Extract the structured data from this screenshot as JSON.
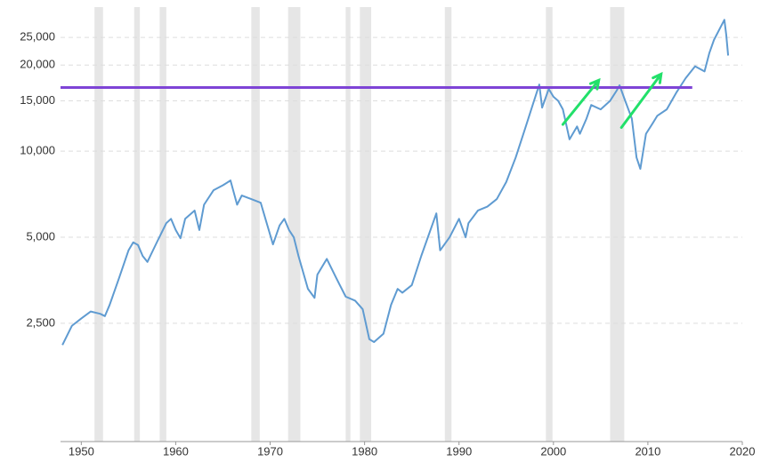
{
  "chart_data": {
    "type": "line",
    "log_scale": true,
    "grid": true,
    "xlim": [
      1947.8,
      2020
    ],
    "xticks": [
      1950,
      1960,
      1970,
      1980,
      1990,
      2000,
      2010,
      2020
    ],
    "ylim": [
      965,
      31900
    ],
    "yticks": [
      {
        "value": 2500,
        "label": "2,500"
      },
      {
        "value": 5000,
        "label": "5,000"
      },
      {
        "value": 10000,
        "label": "10,000"
      },
      {
        "value": 15000,
        "label": "15,000"
      },
      {
        "value": 20000,
        "label": "20,000"
      },
      {
        "value": 25000,
        "label": "25,000"
      }
    ],
    "x": [
      1948.0,
      1949.0,
      1950.0,
      1951.0,
      1952.0,
      1952.5,
      1953.0,
      1954.0,
      1955.0,
      1955.5,
      1956.0,
      1956.5,
      1957.0,
      1958.0,
      1959.0,
      1959.5,
      1960.0,
      1960.5,
      1961.0,
      1962.0,
      1962.5,
      1963.0,
      1964.0,
      1965.0,
      1965.8,
      1966.5,
      1967.0,
      1968.0,
      1969.0,
      1969.5,
      1970.3,
      1971.0,
      1971.5,
      1972.0,
      1972.5,
      1973.0,
      1974.0,
      1974.7,
      1975.0,
      1976.0,
      1977.0,
      1978.0,
      1979.0,
      1979.8,
      1980.5,
      1981.0,
      1982.0,
      1982.8,
      1983.5,
      1984.0,
      1985.0,
      1986.0,
      1987.6,
      1988.0,
      1989.0,
      1990.0,
      1990.7,
      1991.0,
      1992.0,
      1993.0,
      1994.0,
      1995.0,
      1996.0,
      1997.0,
      1997.8,
      1998.5,
      1998.8,
      1999.5,
      2000.0,
      2000.5,
      2001.0,
      2001.7,
      2002.5,
      2002.8,
      2003.5,
      2004.0,
      2005.0,
      2006.0,
      2006.7,
      2007.0,
      2007.6,
      2008.3,
      2008.8,
      2009.2,
      2009.8,
      2010.5,
      2011.0,
      2012.0,
      2013.0,
      2014.0,
      2015.0,
      2016.0,
      2016.5,
      2017.0,
      2018.1,
      2018.3,
      2018.5
    ],
    "series": [
      {
        "color": "#5f9bd1",
        "values": [
          2100,
          2450,
          2600,
          2750,
          2700,
          2650,
          2900,
          3600,
          4500,
          4800,
          4700,
          4300,
          4100,
          4800,
          5600,
          5800,
          5300,
          4960,
          5800,
          6200,
          5300,
          6500,
          7300,
          7600,
          7900,
          6500,
          7000,
          6800,
          6600,
          5800,
          4720,
          5500,
          5800,
          5300,
          5000,
          4300,
          3300,
          3070,
          3700,
          4200,
          3600,
          3100,
          3000,
          2800,
          2200,
          2150,
          2300,
          2900,
          3300,
          3200,
          3400,
          4300,
          6060,
          4500,
          5000,
          5800,
          5000,
          5600,
          6200,
          6400,
          6800,
          7800,
          9500,
          12000,
          14500,
          17100,
          14200,
          16500,
          15500,
          15000,
          14000,
          11000,
          12200,
          11500,
          13000,
          14500,
          14000,
          15000,
          16300,
          17000,
          15000,
          13000,
          9500,
          8670,
          11500,
          12500,
          13300,
          14000,
          16000,
          18000,
          19800,
          19000,
          22000,
          24500,
          28800,
          25500,
          21600
        ]
      }
    ],
    "shaded_periods": [
      {
        "start": 1951.4,
        "end": 1952.3
      },
      {
        "start": 1955.6,
        "end": 1956.2
      },
      {
        "start": 1958.3,
        "end": 1959.0
      },
      {
        "start": 1968.0,
        "end": 1968.9
      },
      {
        "start": 1971.9,
        "end": 1973.2
      },
      {
        "start": 1978.0,
        "end": 1978.5
      },
      {
        "start": 1979.5,
        "end": 1980.7
      },
      {
        "start": 1988.5,
        "end": 1989.2
      },
      {
        "start": 1999.2,
        "end": 1999.9
      },
      {
        "start": 2006.0,
        "end": 2007.5
      }
    ],
    "shade_color": "#e6e6e6",
    "reference_line": {
      "value": 16700,
      "x_end": 2014.7,
      "color": "#7e44d6"
    },
    "arrows": [
      {
        "x0": 2001.0,
        "y0": 12400,
        "x1": 2004.8,
        "y1": 17700
      },
      {
        "x0": 2007.2,
        "y0": 12100,
        "x1": 2011.4,
        "y1": 18600
      }
    ],
    "arrow_color": "#22e06a"
  }
}
